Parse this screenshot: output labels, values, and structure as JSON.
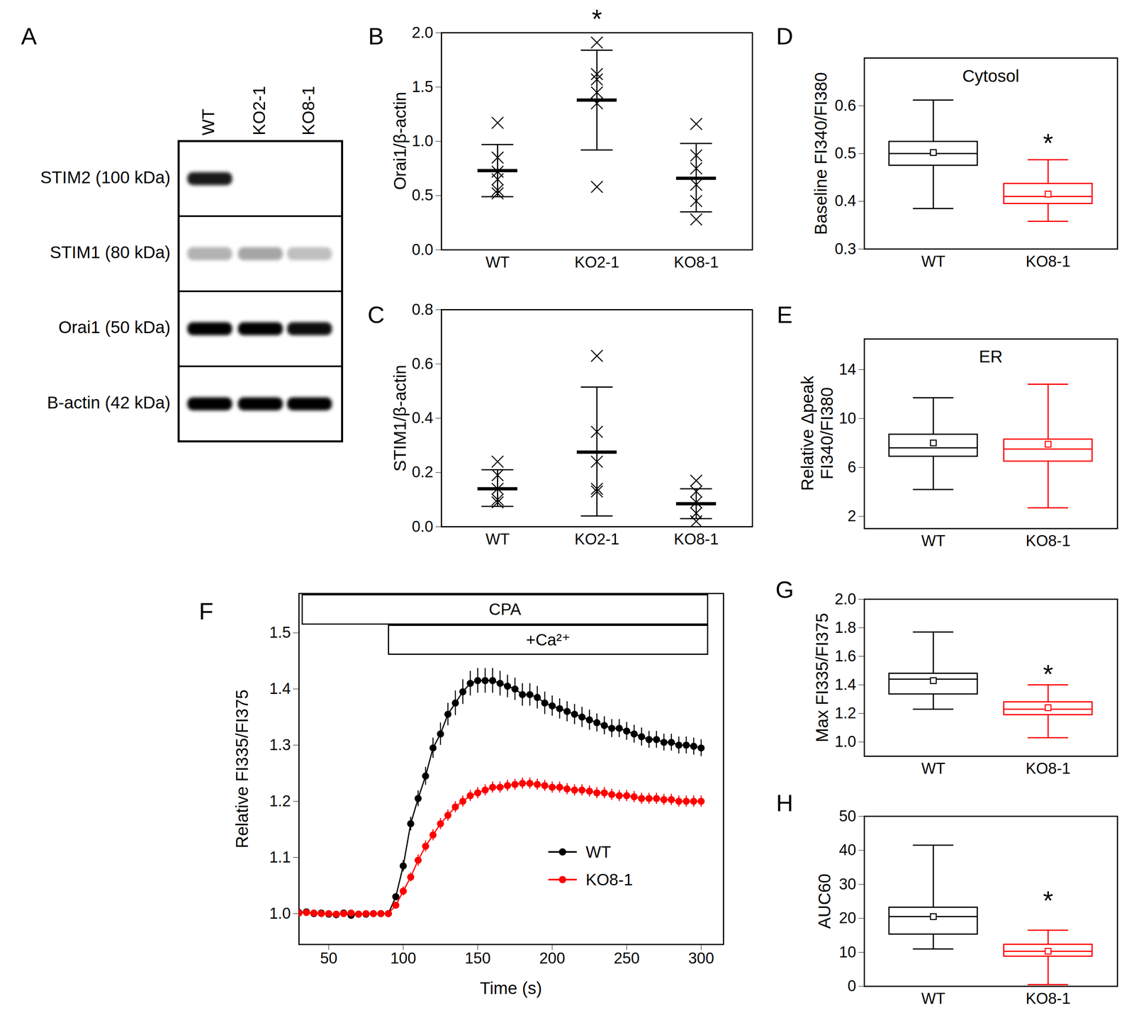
{
  "chart_data": [
    {
      "type": "western_blot",
      "panel": "A",
      "lanes": [
        "WT",
        "KO2-1",
        "KO8-1"
      ],
      "rows": [
        {
          "label": "STIM2 (100 kDa)",
          "intensity": [
            0.9,
            0,
            0
          ]
        },
        {
          "label": "STIM1 (80 kDa)",
          "intensity": [
            0.3,
            0.35,
            0.25
          ]
        },
        {
          "label": "Orai1 (50 kDa)",
          "intensity": [
            1,
            1,
            0.95
          ]
        },
        {
          "label": "B-actin (42 kDa)",
          "intensity": [
            1,
            1,
            1
          ]
        }
      ]
    },
    {
      "type": "dot",
      "panel": "B",
      "ylabel": "Orai1/β-actin",
      "categories": [
        "WT",
        "KO2-1",
        "KO8-1"
      ],
      "marker": "x",
      "color": "#000000",
      "points": [
        [
          1.17,
          0.85,
          0.72,
          0.65,
          0.55,
          0.52
        ],
        [
          1.91,
          1.62,
          1.57,
          1.45,
          1.35,
          0.58
        ],
        [
          1.16,
          0.87,
          0.75,
          0.6,
          0.45,
          0.28
        ]
      ],
      "means": [
        0.73,
        1.38,
        0.66
      ],
      "lower": [
        0.49,
        0.92,
        0.35
      ],
      "upper": [
        0.97,
        1.84,
        0.98
      ],
      "ylim": [
        0,
        2
      ],
      "yticks": [
        {
          "value": 0,
          "label": "0.0"
        },
        0.5,
        {
          "value": 1,
          "label": "1.0"
        },
        1.5,
        {
          "value": 2,
          "label": "2.0"
        }
      ],
      "annotations": [
        {
          "text": "*",
          "category": "KO2-1",
          "y": 2.12
        }
      ]
    },
    {
      "type": "dot",
      "panel": "C",
      "ylabel": "STIM1/β-actin",
      "categories": [
        "WT",
        "KO2-1",
        "KO8-1"
      ],
      "marker": "x",
      "color": "#000000",
      "points": [
        [
          0.24,
          0.19,
          0.14,
          0.1,
          0.09
        ],
        [
          0.63,
          0.35,
          0.24,
          0.14,
          0.13
        ],
        [
          0.17,
          0.13,
          0.09,
          0.05,
          0.02
        ]
      ],
      "means": [
        0.14,
        0.275,
        0.085
      ],
      "lower": [
        0.075,
        0.04,
        0.03
      ],
      "upper": [
        0.21,
        0.515,
        0.14
      ],
      "ylim": [
        0,
        0.8
      ],
      "yticks": [
        {
          "value": 0,
          "label": "0.0"
        },
        0.2,
        0.4,
        0.6,
        0.8
      ]
    },
    {
      "type": "box",
      "panel": "D",
      "title": "Cytosol",
      "ylabel": "Baseline FI340/FI380",
      "categories": [
        "WT",
        "KO8-1"
      ],
      "boxes": [
        {
          "name": "WT",
          "color": "#000000",
          "min": 0.385,
          "q1": 0.475,
          "median": 0.5,
          "q3": 0.525,
          "max": 0.612,
          "mean": 0.502
        },
        {
          "name": "KO8-1",
          "color": "#ff0000",
          "min": 0.358,
          "q1": 0.395,
          "median": 0.41,
          "q3": 0.437,
          "max": 0.487,
          "mean": 0.415
        }
      ],
      "ylim": [
        0.3,
        0.7
      ],
      "yticks": [
        0.3,
        0.4,
        0.5,
        0.6
      ],
      "annotations": [
        {
          "text": "*",
          "category": "KO8-1",
          "y": 0.52
        }
      ]
    },
    {
      "type": "box",
      "panel": "E",
      "title": "ER",
      "ylabel": [
        "Relative Δpeak",
        "FI340/FI380"
      ],
      "categories": [
        "WT",
        "KO8-1"
      ],
      "boxes": [
        {
          "name": "WT",
          "color": "#000000",
          "min": 4.2,
          "q1": 6.9,
          "median": 7.6,
          "q3": 8.7,
          "max": 11.7,
          "mean": 8.0
        },
        {
          "name": "KO8-1",
          "color": "#ff0000",
          "min": 2.7,
          "q1": 6.5,
          "median": 7.5,
          "q3": 8.3,
          "max": 12.8,
          "mean": 7.9
        }
      ],
      "ylim": [
        1,
        16.5
      ],
      "yticks": [
        2,
        6,
        10,
        14
      ]
    },
    {
      "type": "line",
      "panel": "F",
      "xlabel": "Time (s)",
      "ylabel": "Relative FI335/FI375",
      "x": [
        30,
        35,
        40,
        45,
        50,
        55,
        60,
        65,
        70,
        75,
        80,
        85,
        90,
        95,
        100,
        105,
        110,
        115,
        120,
        125,
        130,
        135,
        140,
        145,
        150,
        155,
        160,
        165,
        170,
        175,
        180,
        185,
        190,
        195,
        200,
        205,
        210,
        215,
        220,
        225,
        230,
        235,
        240,
        245,
        250,
        255,
        260,
        265,
        270,
        275,
        280,
        285,
        290,
        295,
        300
      ],
      "series": [
        {
          "name": "WT",
          "color": "#000000",
          "marker": "circle",
          "values": [
            1.002,
            1.003,
            1.0,
            1.001,
            0.999,
            0.998,
            1.001,
            0.997,
            0.999,
            0.999,
            1.0,
            1.0,
            1.0,
            1.03,
            1.085,
            1.16,
            1.205,
            1.245,
            1.295,
            1.32,
            1.355,
            1.375,
            1.395,
            1.41,
            1.415,
            1.415,
            1.415,
            1.41,
            1.405,
            1.4,
            1.39,
            1.39,
            1.385,
            1.375,
            1.37,
            1.365,
            1.36,
            1.355,
            1.35,
            1.345,
            1.34,
            1.335,
            1.33,
            1.33,
            1.325,
            1.32,
            1.315,
            1.31,
            1.31,
            1.305,
            1.305,
            1.3,
            1.3,
            1.298,
            1.295
          ],
          "errors": [
            0.004,
            0.004,
            0.004,
            0.004,
            0.004,
            0.004,
            0.004,
            0.004,
            0.004,
            0.004,
            0.004,
            0.004,
            0.004,
            0.006,
            0.01,
            0.012,
            0.014,
            0.016,
            0.018,
            0.02,
            0.02,
            0.022,
            0.022,
            0.022,
            0.022,
            0.022,
            0.022,
            0.022,
            0.02,
            0.02,
            0.02,
            0.02,
            0.02,
            0.02,
            0.018,
            0.018,
            0.018,
            0.018,
            0.018,
            0.018,
            0.016,
            0.016,
            0.016,
            0.016,
            0.016,
            0.016,
            0.016,
            0.015,
            0.015,
            0.015,
            0.015,
            0.015,
            0.015,
            0.015,
            0.015
          ]
        },
        {
          "name": "KO8-1",
          "color": "#ff0000",
          "marker": "circle",
          "values": [
            1.001,
            1.002,
            1.001,
            1.0,
            1.0,
            0.999,
            1.0,
            1.001,
            0.999,
            1.0,
            1.0,
            1.0,
            1.0,
            1.015,
            1.04,
            1.065,
            1.095,
            1.12,
            1.14,
            1.16,
            1.175,
            1.19,
            1.2,
            1.21,
            1.215,
            1.22,
            1.225,
            1.225,
            1.228,
            1.23,
            1.232,
            1.232,
            1.23,
            1.228,
            1.225,
            1.225,
            1.222,
            1.22,
            1.22,
            1.218,
            1.215,
            1.215,
            1.212,
            1.21,
            1.21,
            1.208,
            1.205,
            1.205,
            1.205,
            1.203,
            1.203,
            1.2,
            1.2,
            1.2,
            1.2
          ],
          "errors": [
            0.003,
            0.003,
            0.003,
            0.003,
            0.003,
            0.003,
            0.003,
            0.003,
            0.003,
            0.003,
            0.003,
            0.003,
            0.003,
            0.005,
            0.008,
            0.008,
            0.01,
            0.01,
            0.01,
            0.01,
            0.01,
            0.01,
            0.01,
            0.01,
            0.01,
            0.01,
            0.01,
            0.01,
            0.01,
            0.01,
            0.01,
            0.01,
            0.01,
            0.01,
            0.01,
            0.01,
            0.01,
            0.01,
            0.01,
            0.01,
            0.01,
            0.01,
            0.01,
            0.01,
            0.01,
            0.01,
            0.01,
            0.01,
            0.01,
            0.01,
            0.01,
            0.01,
            0.01,
            0.01,
            0.01
          ]
        }
      ],
      "xlim": [
        30,
        315
      ],
      "ylim": [
        0.945,
        1.57
      ],
      "xticks": [
        50,
        100,
        150,
        200,
        250,
        300
      ],
      "yticks": [
        {
          "value": 1,
          "label": "1.0"
        },
        1.1,
        1.2,
        1.3,
        1.4,
        1.5
      ],
      "legend": "lower right",
      "annotations": [
        {
          "text": "CPA",
          "start": 32,
          "end": 305
        },
        {
          "text": "+Ca²⁺",
          "start": 90,
          "end": 305
        }
      ]
    },
    {
      "type": "box",
      "panel": "G",
      "ylabel": "Max FI335/FI375",
      "categories": [
        "WT",
        "KO8-1"
      ],
      "boxes": [
        {
          "name": "WT",
          "color": "#000000",
          "min": 1.23,
          "q1": 1.335,
          "median": 1.44,
          "q3": 1.48,
          "max": 1.77,
          "mean": 1.43
        },
        {
          "name": "KO8-1",
          "color": "#ff0000",
          "min": 1.03,
          "q1": 1.19,
          "median": 1.23,
          "q3": 1.28,
          "max": 1.4,
          "mean": 1.24
        }
      ],
      "ylim": [
        0.9,
        2.0
      ],
      "yticks": [
        {
          "value": 1,
          "label": "1.0"
        },
        1.2,
        1.4,
        1.6,
        1.8,
        {
          "value": 2,
          "label": "2.0"
        }
      ],
      "annotations": [
        {
          "text": "*",
          "category": "KO8-1",
          "y": 1.47
        }
      ]
    },
    {
      "type": "box",
      "panel": "H",
      "ylabel": "AUC60",
      "categories": [
        "WT",
        "KO8-1"
      ],
      "boxes": [
        {
          "name": "WT",
          "color": "#000000",
          "min": 11,
          "q1": 15.3,
          "median": 20.5,
          "q3": 23.2,
          "max": 41.5,
          "mean": 20.5
        },
        {
          "name": "KO8-1",
          "color": "#ff0000",
          "min": 0.5,
          "q1": 8.8,
          "median": 10.3,
          "q3": 12.3,
          "max": 16.5,
          "mean": 10.3
        }
      ],
      "ylim": [
        0,
        50
      ],
      "yticks": [
        0,
        10,
        20,
        30,
        40,
        50
      ],
      "annotations": [
        {
          "text": "*",
          "category": "KO8-1",
          "y": 25
        }
      ]
    }
  ]
}
